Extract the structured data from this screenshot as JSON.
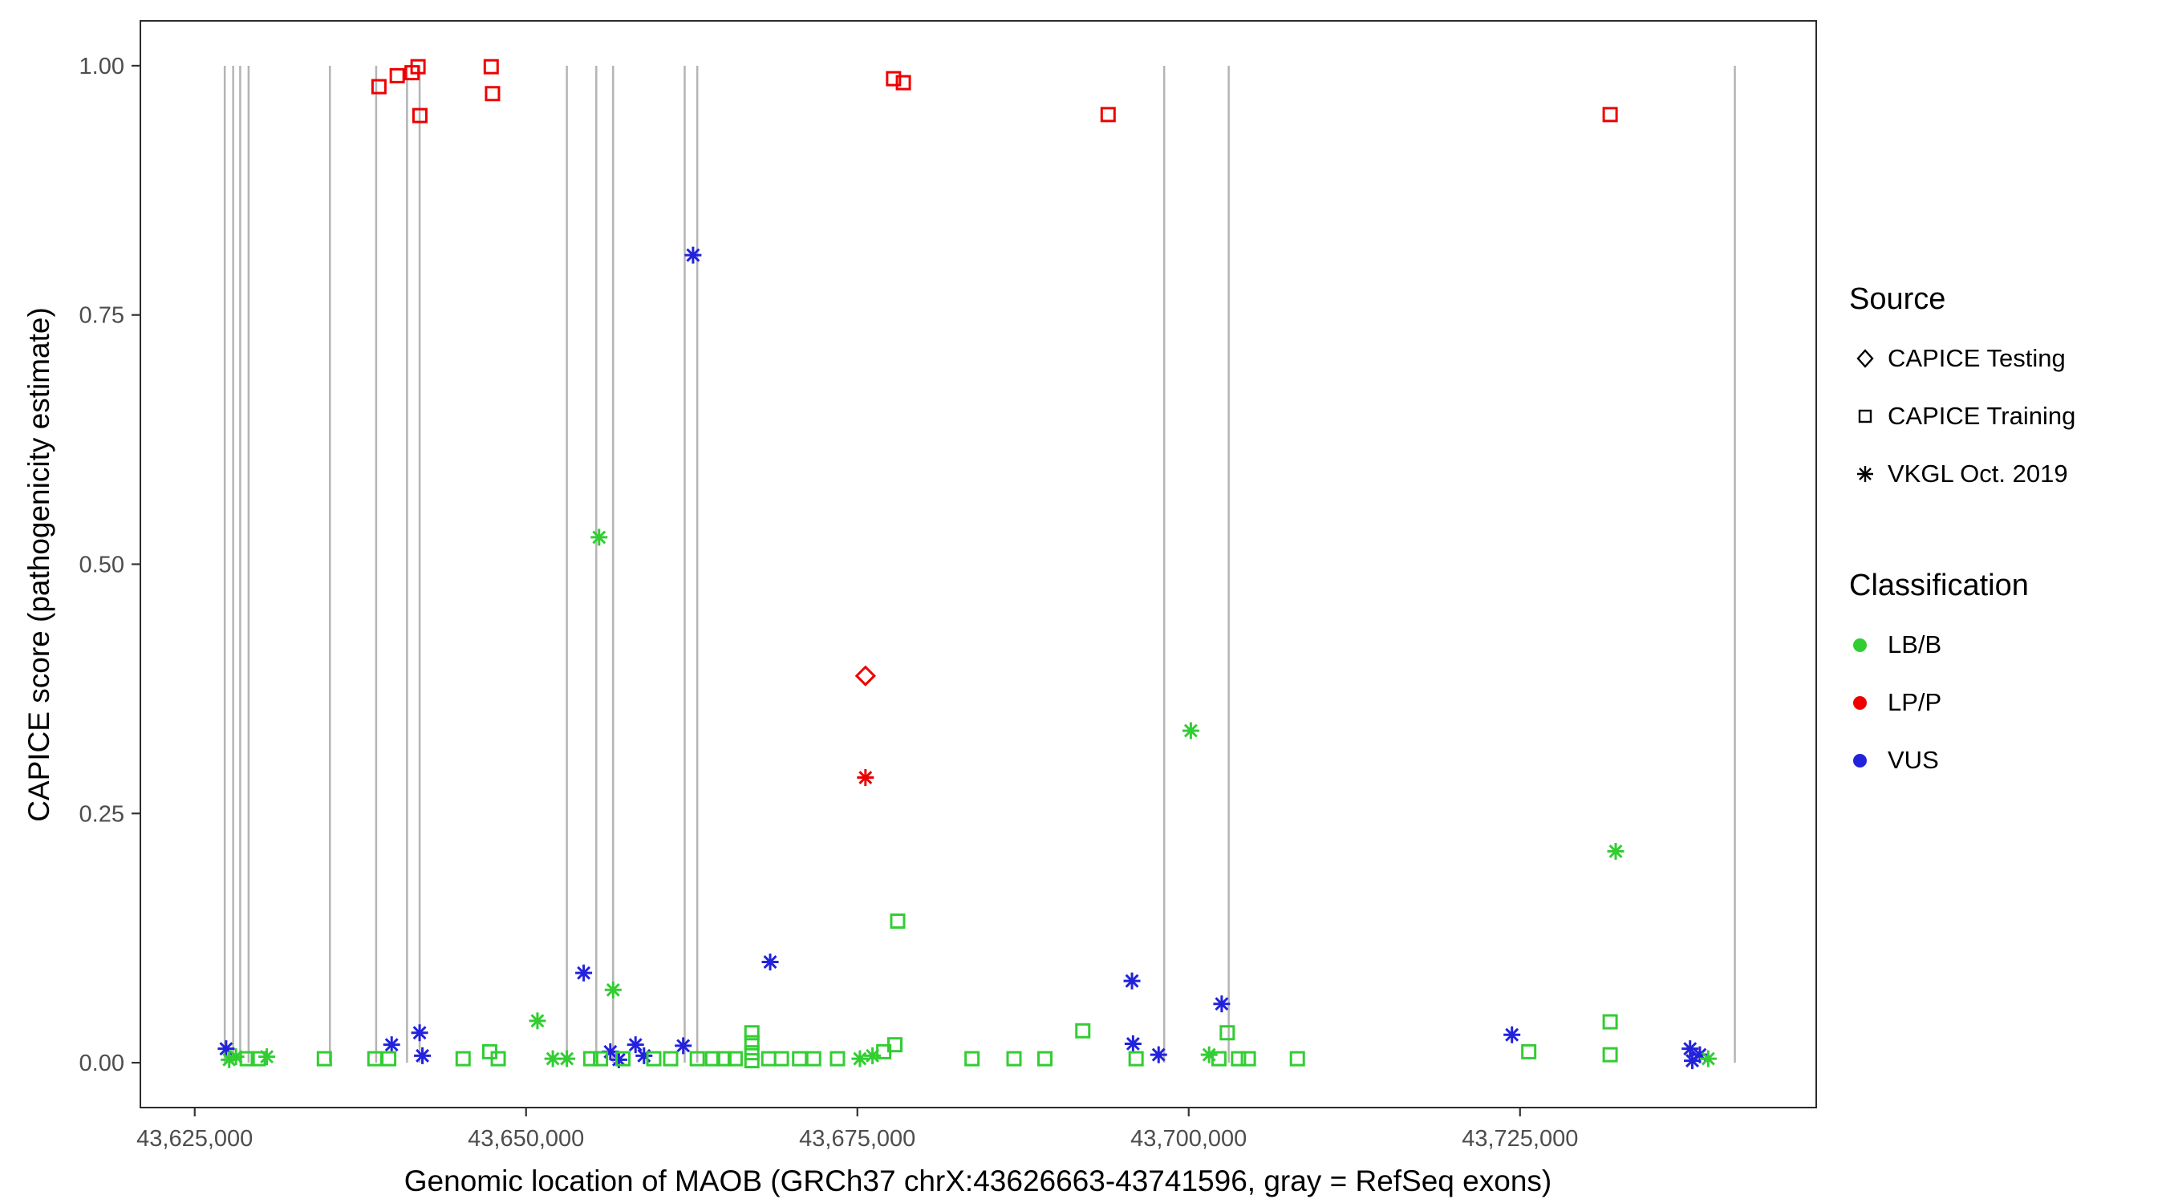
{
  "chart_data": {
    "type": "scatter",
    "title": "",
    "xlabel": "Genomic location of MAOB (GRCh37 chrX:43626663-43741596, gray = RefSeq exons)",
    "ylabel": "CAPICE score (pathogenicity estimate)",
    "xlim": [
      43620900,
      43747350
    ],
    "ylim": [
      -0.045,
      1.045
    ],
    "grid": "off",
    "legend_position": "right",
    "x_ticks": [
      {
        "value": 43625000,
        "label": "43,625,000"
      },
      {
        "value": 43650000,
        "label": "43,650,000"
      },
      {
        "value": 43675000,
        "label": "43,675,000"
      },
      {
        "value": 43700000,
        "label": "43,700,000"
      },
      {
        "value": 43725000,
        "label": "43,725,000"
      }
    ],
    "y_ticks": [
      {
        "value": 0.0,
        "label": "0.00"
      },
      {
        "value": 0.25,
        "label": "0.25"
      },
      {
        "value": 0.5,
        "label": "0.50"
      },
      {
        "value": 0.75,
        "label": "0.75"
      },
      {
        "value": 1.0,
        "label": "1.00"
      }
    ],
    "exon_color": "#b4b4b4",
    "exons_x": [
      43627265,
      43627900,
      43628430,
      43629065,
      43635200,
      43638690,
      43641020,
      43641970,
      43653080,
      43655300,
      43656570,
      43661970,
      43662920,
      43698150,
      43703020,
      43741210
    ],
    "colors": {
      "LB/B": "#32CD32",
      "LP/P": "#EE0000",
      "VUS": "#2222DD"
    },
    "shape_by_source": {
      "CAPICE Testing": "diamond",
      "CAPICE Training": "square",
      "VKGL Oct. 2019": "asterisk"
    },
    "legend": {
      "source_title": "Source",
      "sources": [
        {
          "label": "CAPICE Testing",
          "shape": "diamond"
        },
        {
          "label": "CAPICE Training",
          "shape": "square"
        },
        {
          "label": "VKGL Oct. 2019",
          "shape": "asterisk"
        }
      ],
      "classification_title": "Classification",
      "classifications": [
        {
          "label": "LB/B",
          "color": "#32CD32"
        },
        {
          "label": "LP/P",
          "color": "#EE0000"
        },
        {
          "label": "VUS",
          "color": "#2222DD"
        }
      ]
    },
    "points": [
      {
        "x": 43638900,
        "y": 0.979,
        "source": "CAPICE Training",
        "class": "LP/P"
      },
      {
        "x": 43640280,
        "y": 0.99,
        "source": "CAPICE Training",
        "class": "LP/P"
      },
      {
        "x": 43641400,
        "y": 0.993,
        "source": "CAPICE Training",
        "class": "LP/P"
      },
      {
        "x": 43641850,
        "y": 0.999,
        "source": "CAPICE Training",
        "class": "LP/P"
      },
      {
        "x": 43641990,
        "y": 0.95,
        "source": "CAPICE Training",
        "class": "LP/P"
      },
      {
        "x": 43647370,
        "y": 0.999,
        "source": "CAPICE Training",
        "class": "LP/P"
      },
      {
        "x": 43647470,
        "y": 0.972,
        "source": "CAPICE Training",
        "class": "LP/P"
      },
      {
        "x": 43677730,
        "y": 0.987,
        "source": "CAPICE Training",
        "class": "LP/P"
      },
      {
        "x": 43678470,
        "y": 0.983,
        "source": "CAPICE Training",
        "class": "LP/P"
      },
      {
        "x": 43693920,
        "y": 0.951,
        "source": "CAPICE Training",
        "class": "LP/P"
      },
      {
        "x": 43731800,
        "y": 0.951,
        "source": "CAPICE Training",
        "class": "LP/P"
      },
      {
        "x": 43675610,
        "y": 0.388,
        "source": "CAPICE Testing",
        "class": "LP/P"
      },
      {
        "x": 43675610,
        "y": 0.286,
        "source": "VKGL Oct. 2019",
        "class": "LP/P"
      },
      {
        "x": 43662600,
        "y": 0.81,
        "source": "VKGL Oct. 2019",
        "class": "VUS"
      },
      {
        "x": 43654350,
        "y": 0.09,
        "source": "VKGL Oct. 2019",
        "class": "VUS"
      },
      {
        "x": 43668420,
        "y": 0.101,
        "source": "VKGL Oct. 2019",
        "class": "VUS"
      },
      {
        "x": 43695720,
        "y": 0.082,
        "source": "VKGL Oct. 2019",
        "class": "VUS"
      },
      {
        "x": 43695800,
        "y": 0.019,
        "source": "VKGL Oct. 2019",
        "class": "VUS"
      },
      {
        "x": 43702490,
        "y": 0.059,
        "source": "VKGL Oct. 2019",
        "class": "VUS"
      },
      {
        "x": 43724390,
        "y": 0.028,
        "source": "VKGL Oct. 2019",
        "class": "VUS"
      },
      {
        "x": 43627370,
        "y": 0.014,
        "source": "VKGL Oct. 2019",
        "class": "VUS"
      },
      {
        "x": 43639860,
        "y": 0.018,
        "source": "VKGL Oct. 2019",
        "class": "VUS"
      },
      {
        "x": 43641970,
        "y": 0.03,
        "source": "VKGL Oct. 2019",
        "class": "VUS"
      },
      {
        "x": 43642180,
        "y": 0.007,
        "source": "VKGL Oct. 2019",
        "class": "VUS"
      },
      {
        "x": 43656360,
        "y": 0.011,
        "source": "VKGL Oct. 2019",
        "class": "VUS"
      },
      {
        "x": 43657000,
        "y": 0.003,
        "source": "VKGL Oct. 2019",
        "class": "VUS"
      },
      {
        "x": 43658260,
        "y": 0.018,
        "source": "VKGL Oct. 2019",
        "class": "VUS"
      },
      {
        "x": 43658900,
        "y": 0.007,
        "source": "VKGL Oct. 2019",
        "class": "VUS"
      },
      {
        "x": 43661860,
        "y": 0.017,
        "source": "VKGL Oct. 2019",
        "class": "VUS"
      },
      {
        "x": 43697730,
        "y": 0.008,
        "source": "VKGL Oct. 2019",
        "class": "VUS"
      },
      {
        "x": 43737830,
        "y": 0.014,
        "source": "VKGL Oct. 2019",
        "class": "VUS"
      },
      {
        "x": 43738570,
        "y": 0.008,
        "source": "VKGL Oct. 2019",
        "class": "VUS"
      },
      {
        "x": 43738000,
        "y": 0.002,
        "source": "VKGL Oct. 2019",
        "class": "VUS"
      },
      {
        "x": 43655510,
        "y": 0.527,
        "source": "VKGL Oct. 2019",
        "class": "LB/B"
      },
      {
        "x": 43656570,
        "y": 0.073,
        "source": "VKGL Oct. 2019",
        "class": "LB/B"
      },
      {
        "x": 43650860,
        "y": 0.042,
        "source": "VKGL Oct. 2019",
        "class": "LB/B"
      },
      {
        "x": 43700160,
        "y": 0.333,
        "source": "VKGL Oct. 2019",
        "class": "LB/B"
      },
      {
        "x": 43732220,
        "y": 0.212,
        "source": "VKGL Oct. 2019",
        "class": "LB/B"
      },
      {
        "x": 43628110,
        "y": 0.006,
        "source": "VKGL Oct. 2019",
        "class": "LB/B"
      },
      {
        "x": 43627600,
        "y": 0.003,
        "source": "VKGL Oct. 2019",
        "class": "LB/B"
      },
      {
        "x": 43630440,
        "y": 0.006,
        "source": "VKGL Oct. 2019",
        "class": "LB/B"
      },
      {
        "x": 43652020,
        "y": 0.004,
        "source": "VKGL Oct. 2019",
        "class": "LB/B"
      },
      {
        "x": 43653080,
        "y": 0.004,
        "source": "VKGL Oct. 2019",
        "class": "LB/B"
      },
      {
        "x": 43675190,
        "y": 0.004,
        "source": "VKGL Oct. 2019",
        "class": "LB/B"
      },
      {
        "x": 43676140,
        "y": 0.007,
        "source": "VKGL Oct. 2019",
        "class": "LB/B"
      },
      {
        "x": 43701540,
        "y": 0.008,
        "source": "VKGL Oct. 2019",
        "class": "LB/B"
      },
      {
        "x": 43739200,
        "y": 0.004,
        "source": "VKGL Oct. 2019",
        "class": "LB/B"
      },
      {
        "x": 43678040,
        "y": 0.142,
        "source": "CAPICE Training",
        "class": "LB/B"
      },
      {
        "x": 43628960,
        "y": 0.004,
        "source": "CAPICE Training",
        "class": "LB/B"
      },
      {
        "x": 43629800,
        "y": 0.004,
        "source": "CAPICE Training",
        "class": "LB/B"
      },
      {
        "x": 43634780,
        "y": 0.004,
        "source": "CAPICE Training",
        "class": "LB/B"
      },
      {
        "x": 43638590,
        "y": 0.004,
        "source": "CAPICE Training",
        "class": "LB/B"
      },
      {
        "x": 43639640,
        "y": 0.004,
        "source": "CAPICE Training",
        "class": "LB/B"
      },
      {
        "x": 43645250,
        "y": 0.004,
        "source": "CAPICE Training",
        "class": "LB/B"
      },
      {
        "x": 43647260,
        "y": 0.011,
        "source": "CAPICE Training",
        "class": "LB/B"
      },
      {
        "x": 43647900,
        "y": 0.004,
        "source": "CAPICE Training",
        "class": "LB/B"
      },
      {
        "x": 43654880,
        "y": 0.004,
        "source": "CAPICE Training",
        "class": "LB/B"
      },
      {
        "x": 43655620,
        "y": 0.004,
        "source": "CAPICE Training",
        "class": "LB/B"
      },
      {
        "x": 43657310,
        "y": 0.004,
        "source": "CAPICE Training",
        "class": "LB/B"
      },
      {
        "x": 43659640,
        "y": 0.004,
        "source": "CAPICE Training",
        "class": "LB/B"
      },
      {
        "x": 43660910,
        "y": 0.004,
        "source": "CAPICE Training",
        "class": "LB/B"
      },
      {
        "x": 43662920,
        "y": 0.004,
        "source": "CAPICE Training",
        "class": "LB/B"
      },
      {
        "x": 43664080,
        "y": 0.004,
        "source": "CAPICE Training",
        "class": "LB/B"
      },
      {
        "x": 43664930,
        "y": 0.004,
        "source": "CAPICE Training",
        "class": "LB/B"
      },
      {
        "x": 43665780,
        "y": 0.004,
        "source": "CAPICE Training",
        "class": "LB/B"
      },
      {
        "x": 43667040,
        "y": 0.03,
        "source": "CAPICE Training",
        "class": "LB/B"
      },
      {
        "x": 43667040,
        "y": 0.02,
        "source": "CAPICE Training",
        "class": "LB/B"
      },
      {
        "x": 43667040,
        "y": 0.01,
        "source": "CAPICE Training",
        "class": "LB/B"
      },
      {
        "x": 43667040,
        "y": 0.002,
        "source": "CAPICE Training",
        "class": "LB/B"
      },
      {
        "x": 43668310,
        "y": 0.004,
        "source": "CAPICE Training",
        "class": "LB/B"
      },
      {
        "x": 43669270,
        "y": 0.004,
        "source": "CAPICE Training",
        "class": "LB/B"
      },
      {
        "x": 43670640,
        "y": 0.004,
        "source": "CAPICE Training",
        "class": "LB/B"
      },
      {
        "x": 43671700,
        "y": 0.004,
        "source": "CAPICE Training",
        "class": "LB/B"
      },
      {
        "x": 43673500,
        "y": 0.004,
        "source": "CAPICE Training",
        "class": "LB/B"
      },
      {
        "x": 43676990,
        "y": 0.011,
        "source": "CAPICE Training",
        "class": "LB/B"
      },
      {
        "x": 43677830,
        "y": 0.018,
        "source": "CAPICE Training",
        "class": "LB/B"
      },
      {
        "x": 43683650,
        "y": 0.004,
        "source": "CAPICE Training",
        "class": "LB/B"
      },
      {
        "x": 43686820,
        "y": 0.004,
        "source": "CAPICE Training",
        "class": "LB/B"
      },
      {
        "x": 43689150,
        "y": 0.004,
        "source": "CAPICE Training",
        "class": "LB/B"
      },
      {
        "x": 43692010,
        "y": 0.032,
        "source": "CAPICE Training",
        "class": "LB/B"
      },
      {
        "x": 43696030,
        "y": 0.004,
        "source": "CAPICE Training",
        "class": "LB/B"
      },
      {
        "x": 43702280,
        "y": 0.004,
        "source": "CAPICE Training",
        "class": "LB/B"
      },
      {
        "x": 43702910,
        "y": 0.03,
        "source": "CAPICE Training",
        "class": "LB/B"
      },
      {
        "x": 43703760,
        "y": 0.004,
        "source": "CAPICE Training",
        "class": "LB/B"
      },
      {
        "x": 43704500,
        "y": 0.004,
        "source": "CAPICE Training",
        "class": "LB/B"
      },
      {
        "x": 43708200,
        "y": 0.004,
        "source": "CAPICE Training",
        "class": "LB/B"
      },
      {
        "x": 43725660,
        "y": 0.011,
        "source": "CAPICE Training",
        "class": "LB/B"
      },
      {
        "x": 43731800,
        "y": 0.041,
        "source": "CAPICE Training",
        "class": "LB/B"
      },
      {
        "x": 43731800,
        "y": 0.008,
        "source": "CAPICE Training",
        "class": "LB/B"
      }
    ]
  }
}
